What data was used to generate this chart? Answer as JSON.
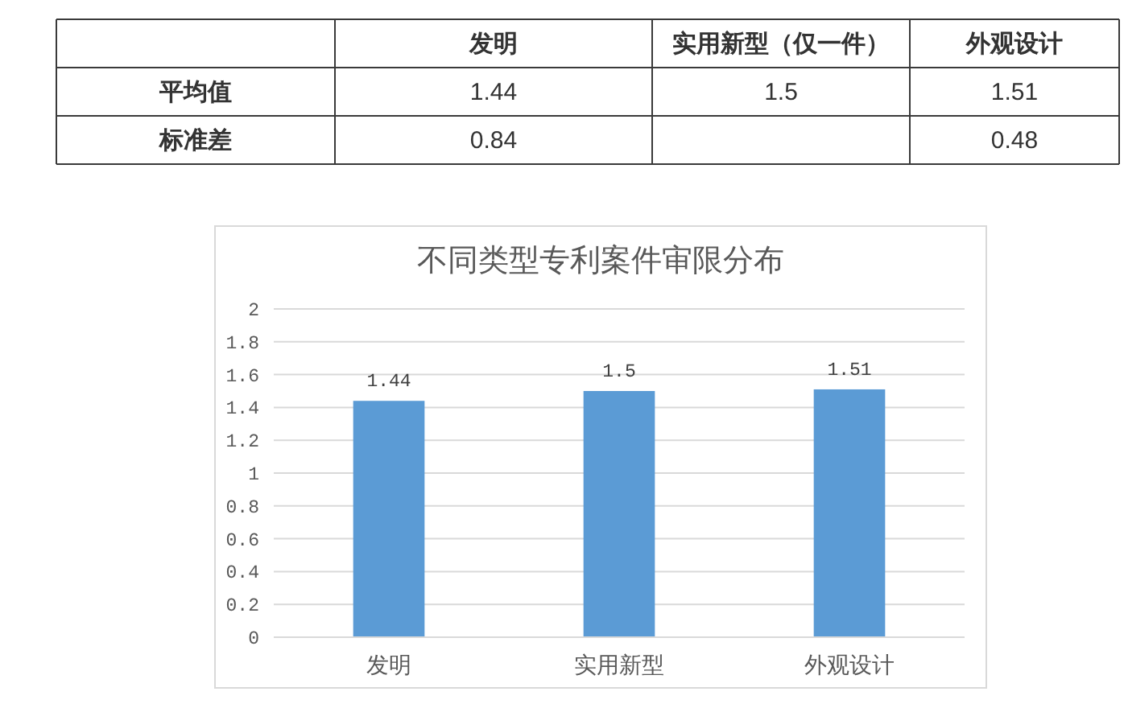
{
  "chart_data": [
    {
      "type": "heatmap",
      "categories": [
        "发明",
        "实用新型（仅一件）",
        "外观设计"
      ],
      "y_categories": [
        "平均值",
        "标准差"
      ],
      "cells": [
        [
          1.44,
          1.5,
          1.51
        ],
        [
          0.84,
          null,
          0.48
        ]
      ],
      "data_labels": true
    },
    {
      "type": "bar",
      "title": "不同类型专利案件审限分布",
      "categories": [
        "发明",
        "实用新型",
        "外观设计"
      ],
      "values": [
        1.44,
        1.5,
        1.51
      ],
      "color": "#5b9bd5",
      "ylim": [
        0,
        2
      ],
      "yticks": [
        0,
        0.2,
        0.4,
        0.6,
        0.8,
        1,
        1.2,
        1.4,
        1.6,
        1.8,
        2
      ],
      "grid": "y",
      "data_labels": true
    }
  ]
}
